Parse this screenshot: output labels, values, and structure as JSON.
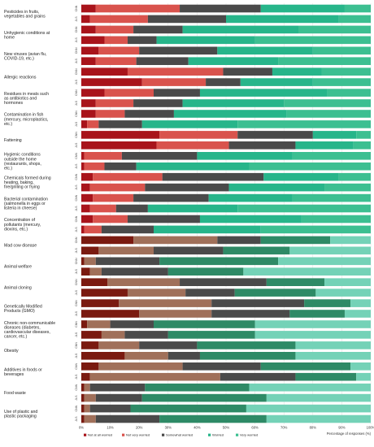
{
  "chart_data": {
    "type": "bar",
    "orientation": "horizontal",
    "stacked": true,
    "percent": true,
    "xlabel": "Percentage of responses (%)",
    "xlim": [
      0,
      100
    ],
    "xticks": [
      "0%",
      "10%",
      "20%",
      "30%",
      "40%",
      "50%",
      "60%",
      "70%",
      "80%",
      "90%",
      "100%"
    ],
    "legend_position": "bottom",
    "legend": [
      {
        "name": "Not at all worried",
        "color": "#a8141b"
      },
      {
        "name": "Not very worried",
        "color": "#d9534d"
      },
      {
        "name": "Somewhat worried",
        "color": "#4a4a4a"
      },
      {
        "name": "Worried",
        "color": "#27b58a"
      },
      {
        "name": "Very worried",
        "color": "#3cbf91"
      }
    ],
    "group_labels": [
      "CNN",
      "JLS"
    ],
    "categories": [
      {
        "label": "Pesticides in fruits, vegetables and grains",
        "palette": "red",
        "rows": [
          [
            5,
            29,
            28,
            29,
            9
          ],
          [
            3,
            20,
            27,
            39,
            11
          ]
        ]
      },
      {
        "label": "Unhygienic conditions at home",
        "palette": "red",
        "rows": [
          [
            5,
            13,
            17,
            40,
            25
          ],
          [
            8,
            8,
            10,
            34,
            40
          ]
        ]
      },
      {
        "label": "New viruses (avian flu, COVID-19, etc.)",
        "palette": "red",
        "rows": [
          [
            6,
            14,
            27,
            33,
            20
          ],
          [
            5,
            14,
            18,
            31,
            32
          ]
        ]
      },
      {
        "label": "Allergic reactions",
        "palette": "red",
        "rows": [
          [
            16,
            33,
            17,
            17,
            17
          ],
          [
            21,
            22,
            12,
            25,
            20
          ]
        ]
      },
      {
        "label": "Residues in meats such as antibiotics and hormones",
        "palette": "red",
        "rows": [
          [
            8,
            17,
            16,
            44,
            15
          ],
          [
            5,
            13,
            17,
            35,
            30
          ]
        ]
      },
      {
        "label": "Contamination in fish (mercury, microplastics, etc.)",
        "palette": "red",
        "rows": [
          [
            5,
            10,
            17,
            39,
            29
          ],
          [
            2,
            4,
            15,
            33,
            46
          ]
        ]
      },
      {
        "label": "Fattening",
        "palette": "red",
        "rows": [
          [
            27,
            27,
            26,
            15,
            5
          ],
          [
            26,
            25,
            23,
            20,
            6
          ]
        ]
      },
      {
        "label": "Hygienic conditions outside the home (restaurants, shops, etc.)",
        "palette": "red",
        "rows": [
          [
            1,
            13,
            26,
            33,
            27
          ],
          [
            1,
            7,
            11,
            39,
            42
          ]
        ]
      },
      {
        "label": "Chemicals formed during heating, baking, fire/grilling or frying",
        "palette": "red",
        "rows": [
          [
            4,
            24,
            35,
            26,
            11
          ],
          [
            3,
            19,
            29,
            33,
            16
          ]
        ]
      },
      {
        "label": "Bacterial contamination (salmonella in eggs or listeria in cheese)",
        "palette": "red",
        "rows": [
          [
            4,
            14,
            26,
            29,
            27
          ],
          [
            3,
            9,
            11,
            31,
            46
          ]
        ]
      },
      {
        "label": "Concentration of pollutants (mercury, dioxins, etc.)",
        "palette": "red",
        "rows": [
          [
            4,
            12,
            25,
            35,
            24
          ],
          [
            1,
            6,
            18,
            37,
            38
          ]
        ]
      },
      {
        "label": "Mad cow disease",
        "palette": "brown",
        "rows": [
          [
            18,
            29,
            15,
            24,
            14
          ],
          [
            6,
            19,
            24,
            23,
            28
          ]
        ]
      },
      {
        "label": "Animal welfare",
        "palette": "brown",
        "rows": [
          [
            1,
            4,
            22,
            41,
            32
          ],
          [
            3,
            4,
            23,
            26,
            44
          ]
        ]
      },
      {
        "label": "Animal cloning",
        "palette": "brown",
        "rows": [
          [
            9,
            25,
            30,
            20,
            16
          ],
          [
            16,
            20,
            17,
            28,
            19
          ]
        ]
      },
      {
        "label": "Genetically Modified Products (GMO)",
        "palette": "brown",
        "rows": [
          [
            13,
            32,
            32,
            16,
            7
          ],
          [
            20,
            25,
            27,
            19,
            9
          ]
        ]
      },
      {
        "label": "Chronic non-communicable diseases (diabetes, cardiovascular diseases, cancer, etc.)",
        "palette": "brown",
        "rows": [
          [
            2,
            8,
            15,
            35,
            40
          ],
          [
            7,
            8,
            15,
            30,
            40
          ]
        ]
      },
      {
        "label": "Obesity",
        "palette": "brown",
        "rows": [
          [
            6,
            14,
            20,
            34,
            26
          ],
          [
            15,
            15,
            11,
            33,
            26
          ]
        ]
      },
      {
        "label": "Additives in foods or beverages",
        "palette": "brown",
        "rows": [
          [
            6,
            29,
            27,
            31,
            7
          ],
          [
            3,
            45,
            26,
            21,
            5
          ]
        ]
      },
      {
        "label": "Food waste",
        "palette": "brown",
        "rows": [
          [
            1,
            2,
            19,
            36,
            42
          ],
          [
            1,
            4,
            16,
            43,
            36
          ]
        ]
      },
      {
        "label": "Use of plastic and plastic packaging",
        "palette": "brown",
        "rows": [
          [
            1,
            2,
            14,
            40,
            43
          ],
          [
            1,
            4,
            22,
            37,
            36
          ]
        ]
      }
    ],
    "palettes": {
      "red": [
        "#a8141b",
        "#d9534d",
        "#4a4a4a",
        "#27b58a",
        "#3cbf91"
      ],
      "brown": [
        "#7a1a10",
        "#a0705a",
        "#4a4a4a",
        "#2e8a66",
        "#74d2b7"
      ]
    }
  }
}
